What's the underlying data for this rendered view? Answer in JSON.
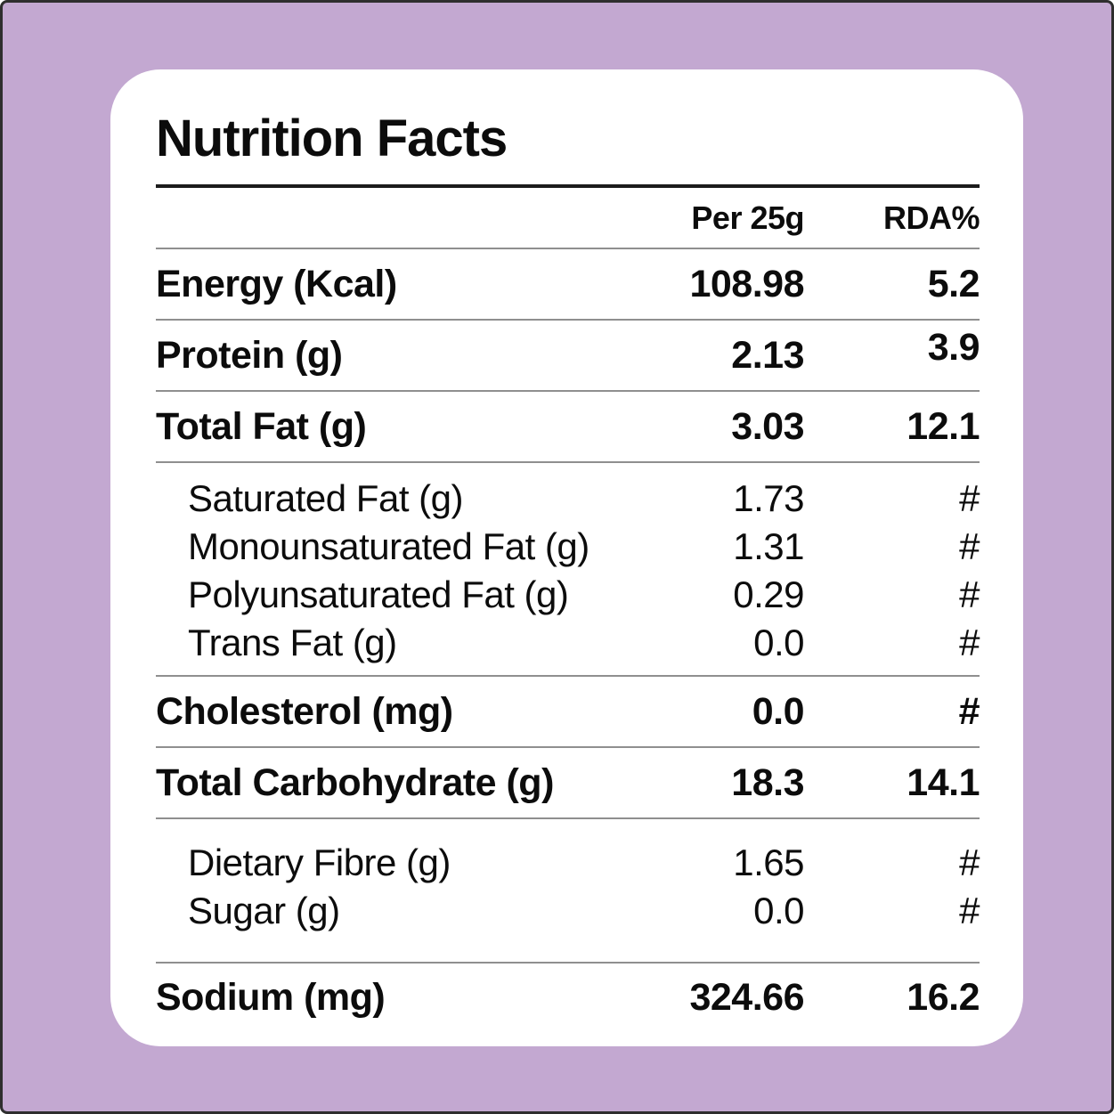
{
  "page": {
    "background_color": "#c3a8d1",
    "frame_border_color": "#2e2e2e",
    "card_background_color": "#ffffff",
    "text_color": "#0c0c0c"
  },
  "label": {
    "title": "Nutrition Facts",
    "columns": {
      "amount": "Per 25g",
      "rda": "RDA%"
    },
    "rows": [
      {
        "label": "Energy (Kcal)",
        "amount": "108.98",
        "rda": "5.2"
      },
      {
        "label": "Protein (g)",
        "amount": "2.13",
        "rda": "3.9"
      },
      {
        "label": "Total Fat (g)",
        "amount": "3.03",
        "rda": "12.1"
      },
      {
        "label": "Saturated Fat (g)",
        "amount": "1.73",
        "rda": "#"
      },
      {
        "label": "Monounsaturated Fat (g)",
        "amount": "1.31",
        "rda": "#"
      },
      {
        "label": "Polyunsaturated Fat (g)",
        "amount": "0.29",
        "rda": "#"
      },
      {
        "label": "Trans Fat (g)",
        "amount": "0.0",
        "rda": "#"
      },
      {
        "label": "Cholesterol (mg)",
        "amount": "0.0",
        "rda": "#"
      },
      {
        "label": "Total Carbohydrate (g)",
        "amount": "18.3",
        "rda": "14.1"
      },
      {
        "label": "Dietary Fibre (g)",
        "amount": "1.65",
        "rda": "#"
      },
      {
        "label": "Sugar (g)",
        "amount": "0.0",
        "rda": "#"
      },
      {
        "label": "Sodium (mg)",
        "amount": "324.66",
        "rda": "16.2"
      }
    ]
  }
}
